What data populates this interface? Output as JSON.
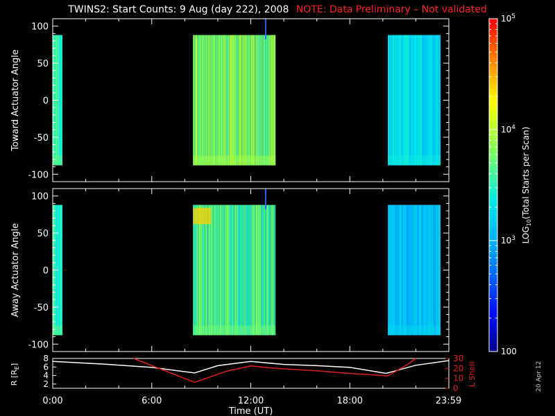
{
  "title": {
    "main": "TWINS2: Start Counts:  9 Aug (day 222), 2008",
    "note": "NOTE: Data Preliminary – Not validated"
  },
  "timestamp": "20 Apr 12",
  "colors": {
    "background": "#000000",
    "note": "#ff2020",
    "r_line": "#ffffff",
    "l_shell_line": "#e02020",
    "spike": "#3060ff"
  },
  "chart_data": [
    {
      "type": "heatmap",
      "panel": "toward",
      "ylabel": "Toward Actuator Angle",
      "ylim": [
        -110,
        110
      ],
      "yticks": [
        100,
        50,
        0,
        -50,
        -100
      ],
      "xlim": [
        0,
        24
      ],
      "grid": false,
      "data_blocks": [
        {
          "t_start": 0.0,
          "t_end": 0.1,
          "angle_min": -88,
          "angle_max": 88,
          "log_level": 3.55
        },
        {
          "t_start": 8.5,
          "t_end": 13.5,
          "angle_min": -88,
          "angle_max": 88,
          "log_level": 3.78
        },
        {
          "t_start": 20.3,
          "t_end": 23.5,
          "angle_min": -88,
          "angle_max": 88,
          "log_level": 3.25
        }
      ],
      "spike_time": 12.9
    },
    {
      "type": "heatmap",
      "panel": "away",
      "ylabel": "Away Actuator Angle",
      "ylim": [
        -110,
        110
      ],
      "yticks": [
        100,
        50,
        0,
        -50,
        -100
      ],
      "xlim": [
        0,
        24
      ],
      "grid": false,
      "data_blocks": [
        {
          "t_start": 0.0,
          "t_end": 0.1,
          "angle_min": -88,
          "angle_max": 88,
          "log_level": 3.55
        },
        {
          "t_start": 8.5,
          "t_end": 13.5,
          "angle_min": -88,
          "angle_max": 88,
          "log_level": 3.6
        },
        {
          "t_start": 20.3,
          "t_end": 23.5,
          "angle_min": -88,
          "angle_max": 88,
          "log_level": 3.1
        }
      ],
      "hotspot": {
        "t_start": 8.5,
        "t_end": 9.6,
        "angle_min": 62,
        "angle_max": 84,
        "log_level": 4.4
      },
      "spike_time": 12.9
    },
    {
      "type": "line",
      "panel": "orbit",
      "xlabel": "Time (UT)",
      "xticks": [
        "0:00",
        "6:00",
        "12:00",
        "18:00",
        "23:59"
      ],
      "xtick_values": [
        0,
        6,
        12,
        18,
        23.98
      ],
      "xlim": [
        0,
        24
      ],
      "left_axis": {
        "label_main": "R [R",
        "label_sub": "E",
        "label_end": "]",
        "ylim": [
          1,
          8
        ],
        "ticks": [
          8,
          6,
          4,
          2
        ]
      },
      "right_axis": {
        "label": "L Shell",
        "ylim": [
          0,
          30
        ],
        "ticks": [
          30,
          20,
          10,
          0
        ]
      },
      "series": [
        {
          "axis": "left",
          "x": [
            0,
            3,
            6,
            8.6,
            10,
            12,
            14,
            16,
            18,
            20.2,
            22,
            24
          ],
          "y": [
            7.3,
            6.7,
            5.9,
            4.6,
            6.3,
            7.3,
            6.6,
            6.3,
            5.9,
            4.5,
            6.4,
            7.5
          ]
        },
        {
          "axis": "right",
          "x": [
            4.9,
            8.6,
            10.5,
            12,
            13.5,
            16,
            18,
            20.3,
            21.5,
            22.0
          ],
          "y": [
            30,
            6,
            17,
            22.5,
            20,
            17.5,
            15,
            12.5,
            24,
            30
          ]
        }
      ]
    },
    {
      "type": "colorbar",
      "label_main": "LOG",
      "label_sub": "10",
      "label_end": "(Total Starts per Scan)",
      "scale": "log",
      "range": [
        100,
        100000
      ],
      "tick_labels": [
        {
          "base": "10",
          "exp": "5",
          "value": 5
        },
        {
          "base": "10",
          "exp": "4",
          "value": 4
        },
        {
          "base": "10",
          "exp": "3",
          "value": 3
        },
        {
          "base": "100",
          "exp": "",
          "value": 2
        }
      ]
    }
  ]
}
